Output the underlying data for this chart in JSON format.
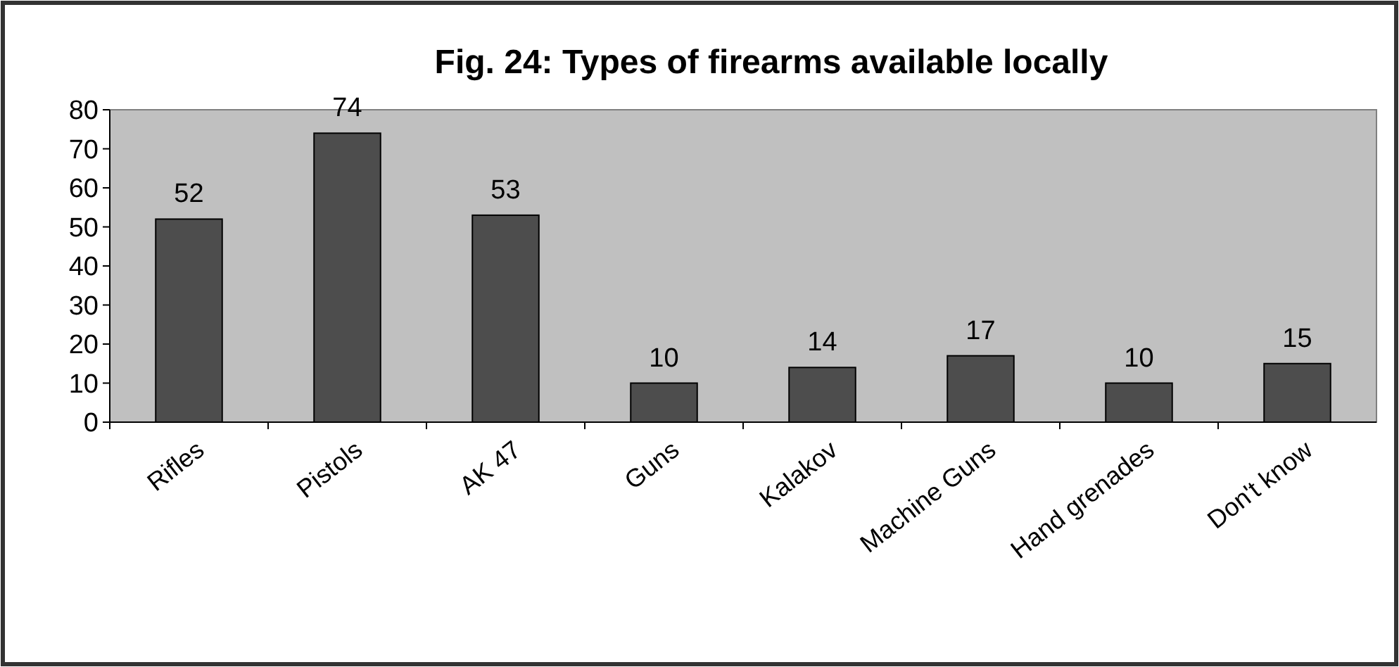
{
  "chart_data": {
    "type": "bar",
    "title": "Fig. 24: Types of firearms available locally",
    "categories": [
      "Rifles",
      "Pistols",
      "AK 47",
      "Guns",
      "Kalakov",
      "Machine Guns",
      "Hand grenades",
      "Don't know"
    ],
    "values": [
      52,
      74,
      53,
      10,
      14,
      17,
      10,
      15
    ],
    "color": "#4d4d4d",
    "ylim": [
      0,
      80
    ],
    "yticks": [
      0,
      10,
      20,
      30,
      40,
      50,
      60,
      70,
      80
    ],
    "grid": false,
    "data_labels": true
  }
}
